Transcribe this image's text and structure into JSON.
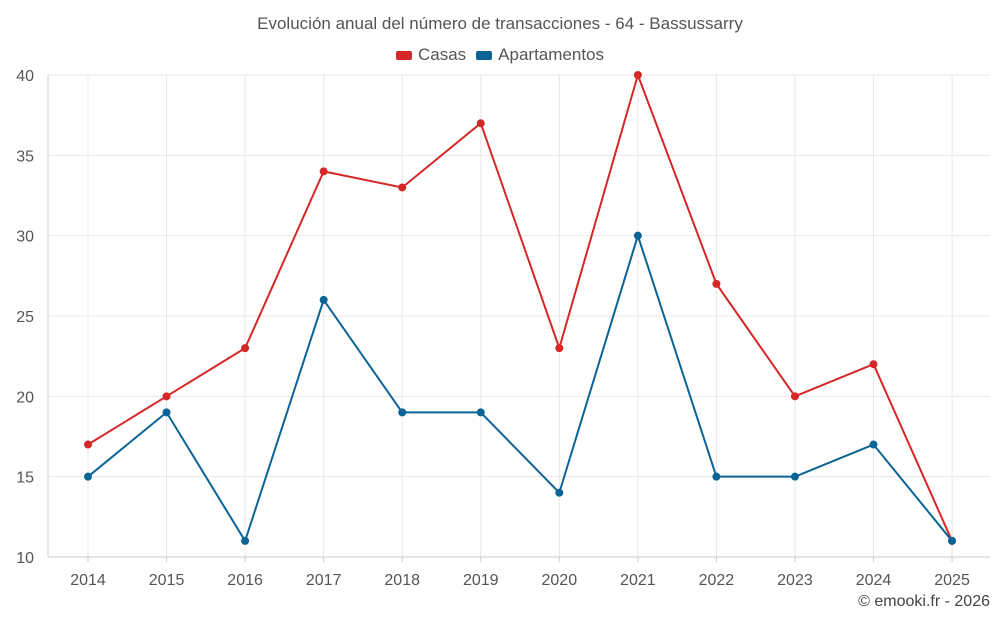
{
  "colors": {
    "casas": "#d62728",
    "apartamentos": "#0a6496",
    "grid": "#e8e8e8",
    "text": "#555555"
  },
  "chart_data": {
    "type": "line",
    "title": "Evolución anual del número de transacciones - 64 - Bassussarry",
    "x": [
      2014,
      2015,
      2016,
      2017,
      2018,
      2019,
      2020,
      2021,
      2022,
      2023,
      2024,
      2025
    ],
    "series": [
      {
        "name": "Casas",
        "color": "#d62728",
        "values": [
          17,
          20,
          23,
          34,
          33,
          37,
          23,
          40,
          27,
          20,
          22,
          11
        ]
      },
      {
        "name": "Apartamentos",
        "color": "#0a6496",
        "values": [
          15,
          19,
          11,
          26,
          19,
          19,
          14,
          30,
          15,
          15,
          17,
          11
        ]
      }
    ],
    "ylim": [
      10,
      40
    ],
    "yticks": [
      10,
      15,
      20,
      25,
      30,
      35,
      40
    ],
    "grid": true,
    "legend_position": "top-center"
  },
  "credit": "© emooki.fr - 2026"
}
